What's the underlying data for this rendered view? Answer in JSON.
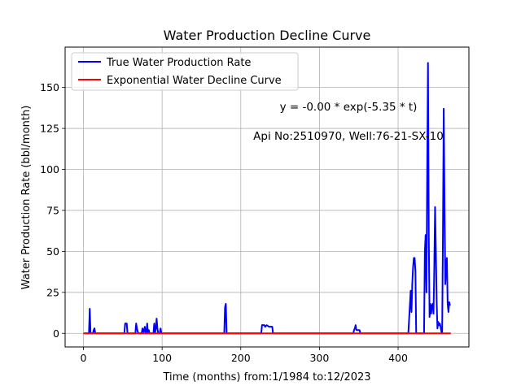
{
  "chart_data": {
    "type": "line",
    "title": "Water Production Decline Curve",
    "xlabel": "Time (months) from:1/1984 to:12/2023",
    "ylabel": "Water Production Rate (bbl/month)",
    "xlim": [
      -23.3,
      490
    ],
    "ylim": [
      -8.3,
      174.6
    ],
    "xticks": [
      0,
      100,
      200,
      300,
      400
    ],
    "yticks": [
      0,
      25,
      50,
      75,
      100,
      125,
      150
    ],
    "grid": true,
    "legend_position": "top-left",
    "annotations": [
      "y = -0.00 * exp(-5.35 * t)",
      "Api No:2510970, Well:76-21-SX-10"
    ],
    "series": [
      {
        "name": "True Water Production Rate",
        "color": "#0000ff",
        "points": [
          [
            0,
            0
          ],
          [
            7,
            0
          ],
          [
            8,
            15
          ],
          [
            9,
            0
          ],
          [
            12,
            0
          ],
          [
            13,
            2
          ],
          [
            14,
            3
          ],
          [
            15,
            0
          ],
          [
            52,
            0
          ],
          [
            53,
            6
          ],
          [
            55,
            6
          ],
          [
            56,
            0
          ],
          [
            66,
            0
          ],
          [
            67,
            6
          ],
          [
            68,
            3
          ],
          [
            69,
            1
          ],
          [
            70,
            0
          ],
          [
            74,
            0
          ],
          [
            75,
            3
          ],
          [
            76,
            0
          ],
          [
            78,
            4
          ],
          [
            79,
            0
          ],
          [
            80,
            0
          ],
          [
            81,
            6
          ],
          [
            82,
            0
          ],
          [
            83,
            2
          ],
          [
            84,
            0
          ],
          [
            89,
            0
          ],
          [
            90,
            6
          ],
          [
            91,
            0
          ],
          [
            92,
            3
          ],
          [
            93,
            9
          ],
          [
            94,
            3
          ],
          [
            95,
            0
          ],
          [
            97,
            0
          ],
          [
            98,
            3
          ],
          [
            99,
            0
          ],
          [
            179,
            0
          ],
          [
            180,
            16
          ],
          [
            181,
            18
          ],
          [
            182,
            0
          ],
          [
            226,
            0
          ],
          [
            227,
            5
          ],
          [
            230,
            5
          ],
          [
            231,
            4
          ],
          [
            233,
            5
          ],
          [
            236,
            4
          ],
          [
            240,
            4
          ],
          [
            241,
            0
          ],
          [
            343,
            0
          ],
          [
            344,
            2
          ],
          [
            345,
            3
          ],
          [
            346,
            5
          ],
          [
            347,
            2
          ],
          [
            350,
            2
          ],
          [
            351,
            2
          ],
          [
            352,
            0
          ],
          [
            413,
            0
          ],
          [
            416,
            26
          ],
          [
            417,
            13
          ],
          [
            418,
            30
          ],
          [
            419,
            40
          ],
          [
            420,
            46
          ],
          [
            421,
            46
          ],
          [
            422,
            38
          ],
          [
            423,
            0
          ],
          [
            433,
            0
          ],
          [
            434,
            50
          ],
          [
            435,
            60
          ],
          [
            436,
            25
          ],
          [
            437,
            100
          ],
          [
            438,
            165
          ],
          [
            439,
            60
          ],
          [
            440,
            10
          ],
          [
            441,
            18
          ],
          [
            442,
            12
          ],
          [
            443,
            17
          ],
          [
            444,
            18
          ],
          [
            445,
            12
          ],
          [
            446,
            40
          ],
          [
            447,
            77
          ],
          [
            448,
            50
          ],
          [
            449,
            20
          ],
          [
            450,
            3
          ],
          [
            451,
            7
          ],
          [
            452,
            5
          ],
          [
            453,
            6
          ],
          [
            454,
            4
          ],
          [
            455,
            1
          ],
          [
            456,
            0
          ],
          [
            457,
            60
          ],
          [
            458,
            137
          ],
          [
            459,
            80
          ],
          [
            460,
            30
          ],
          [
            461,
            42
          ],
          [
            462,
            46
          ],
          [
            463,
            18
          ],
          [
            464,
            13
          ],
          [
            465,
            19
          ],
          [
            466,
            17
          ]
        ]
      },
      {
        "name": "Exponential Water Decline Curve",
        "color": "#ff0000",
        "points": [
          [
            0,
            0
          ],
          [
            467,
            0
          ]
        ]
      }
    ]
  }
}
